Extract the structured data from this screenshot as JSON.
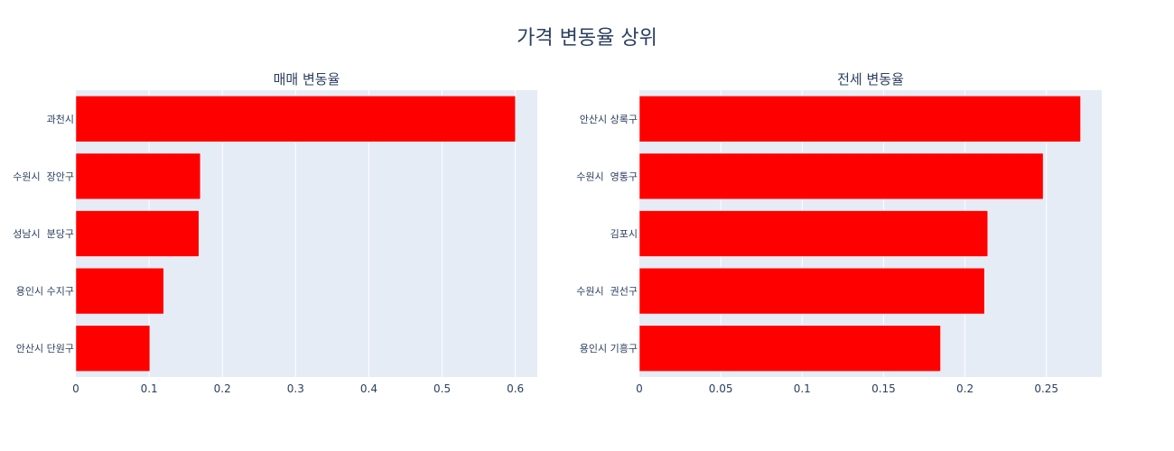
{
  "chart_title": "가격 변동율 상위",
  "colors": {
    "bar": "#ff0000",
    "plot_bg": "#e5ecf6",
    "grid": "#ffffff",
    "text": "#2a3f5f",
    "page_bg": "#ffffff"
  },
  "chart_data": [
    {
      "type": "bar",
      "orientation": "horizontal",
      "title": "매매 변동율",
      "categories": [
        "과천시",
        "수원시  장안구",
        "성남시  분당구",
        "용인시 수지구",
        "안산시 단원구"
      ],
      "values": [
        0.6,
        0.17,
        0.168,
        0.12,
        0.101
      ],
      "xlim": [
        0,
        0.63
      ],
      "xticks": [
        0,
        0.1,
        0.2,
        0.3,
        0.4,
        0.5,
        0.6
      ],
      "xtick_labels": [
        "0",
        "0.1",
        "0.2",
        "0.3",
        "0.4",
        "0.5",
        "0.6"
      ],
      "grid": true,
      "legend": "none"
    },
    {
      "type": "bar",
      "orientation": "horizontal",
      "title": "전세 변동율",
      "categories": [
        "안산시 상록구",
        "수원시  영통구",
        "김포시",
        "수원시  권선구",
        "용인시 기흥구"
      ],
      "values": [
        0.271,
        0.248,
        0.214,
        0.212,
        0.185
      ],
      "xlim": [
        0,
        0.284
      ],
      "xticks": [
        0,
        0.05,
        0.1,
        0.15,
        0.2,
        0.25
      ],
      "xtick_labels": [
        "0",
        "0.05",
        "0.1",
        "0.15",
        "0.2",
        "0.25"
      ],
      "grid": true,
      "legend": "none"
    }
  ]
}
